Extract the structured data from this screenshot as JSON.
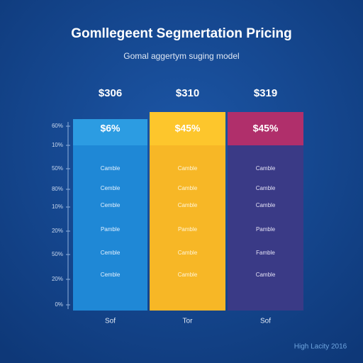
{
  "header": {
    "title": "Gomllegeent Segmertation Pricing",
    "subtitle": "Gomal aggertym suging model"
  },
  "axis_labels": [
    "60%",
    "10%",
    "50%",
    "80%",
    "10%",
    "20%",
    "50%",
    "20%",
    "0%"
  ],
  "columns": [
    {
      "price": "$306",
      "badge": "$6%",
      "features": [
        "Camble",
        "Cemble",
        "Cemble",
        "Pamble",
        "Cemble",
        "Cemble"
      ],
      "label": "Sof"
    },
    {
      "price": "$310",
      "badge": "$45%",
      "features": [
        "Camble",
        "Camble",
        "Camble",
        "Pamble",
        "Camble",
        "Camble"
      ],
      "label": "Tor"
    },
    {
      "price": "$319",
      "badge": "$45%",
      "features": [
        "Camble",
        "Camble",
        "Camble",
        "Pamble",
        "Famble",
        "Camble"
      ],
      "label": "Sof"
    }
  ],
  "footer": "High Lacity 2016"
}
